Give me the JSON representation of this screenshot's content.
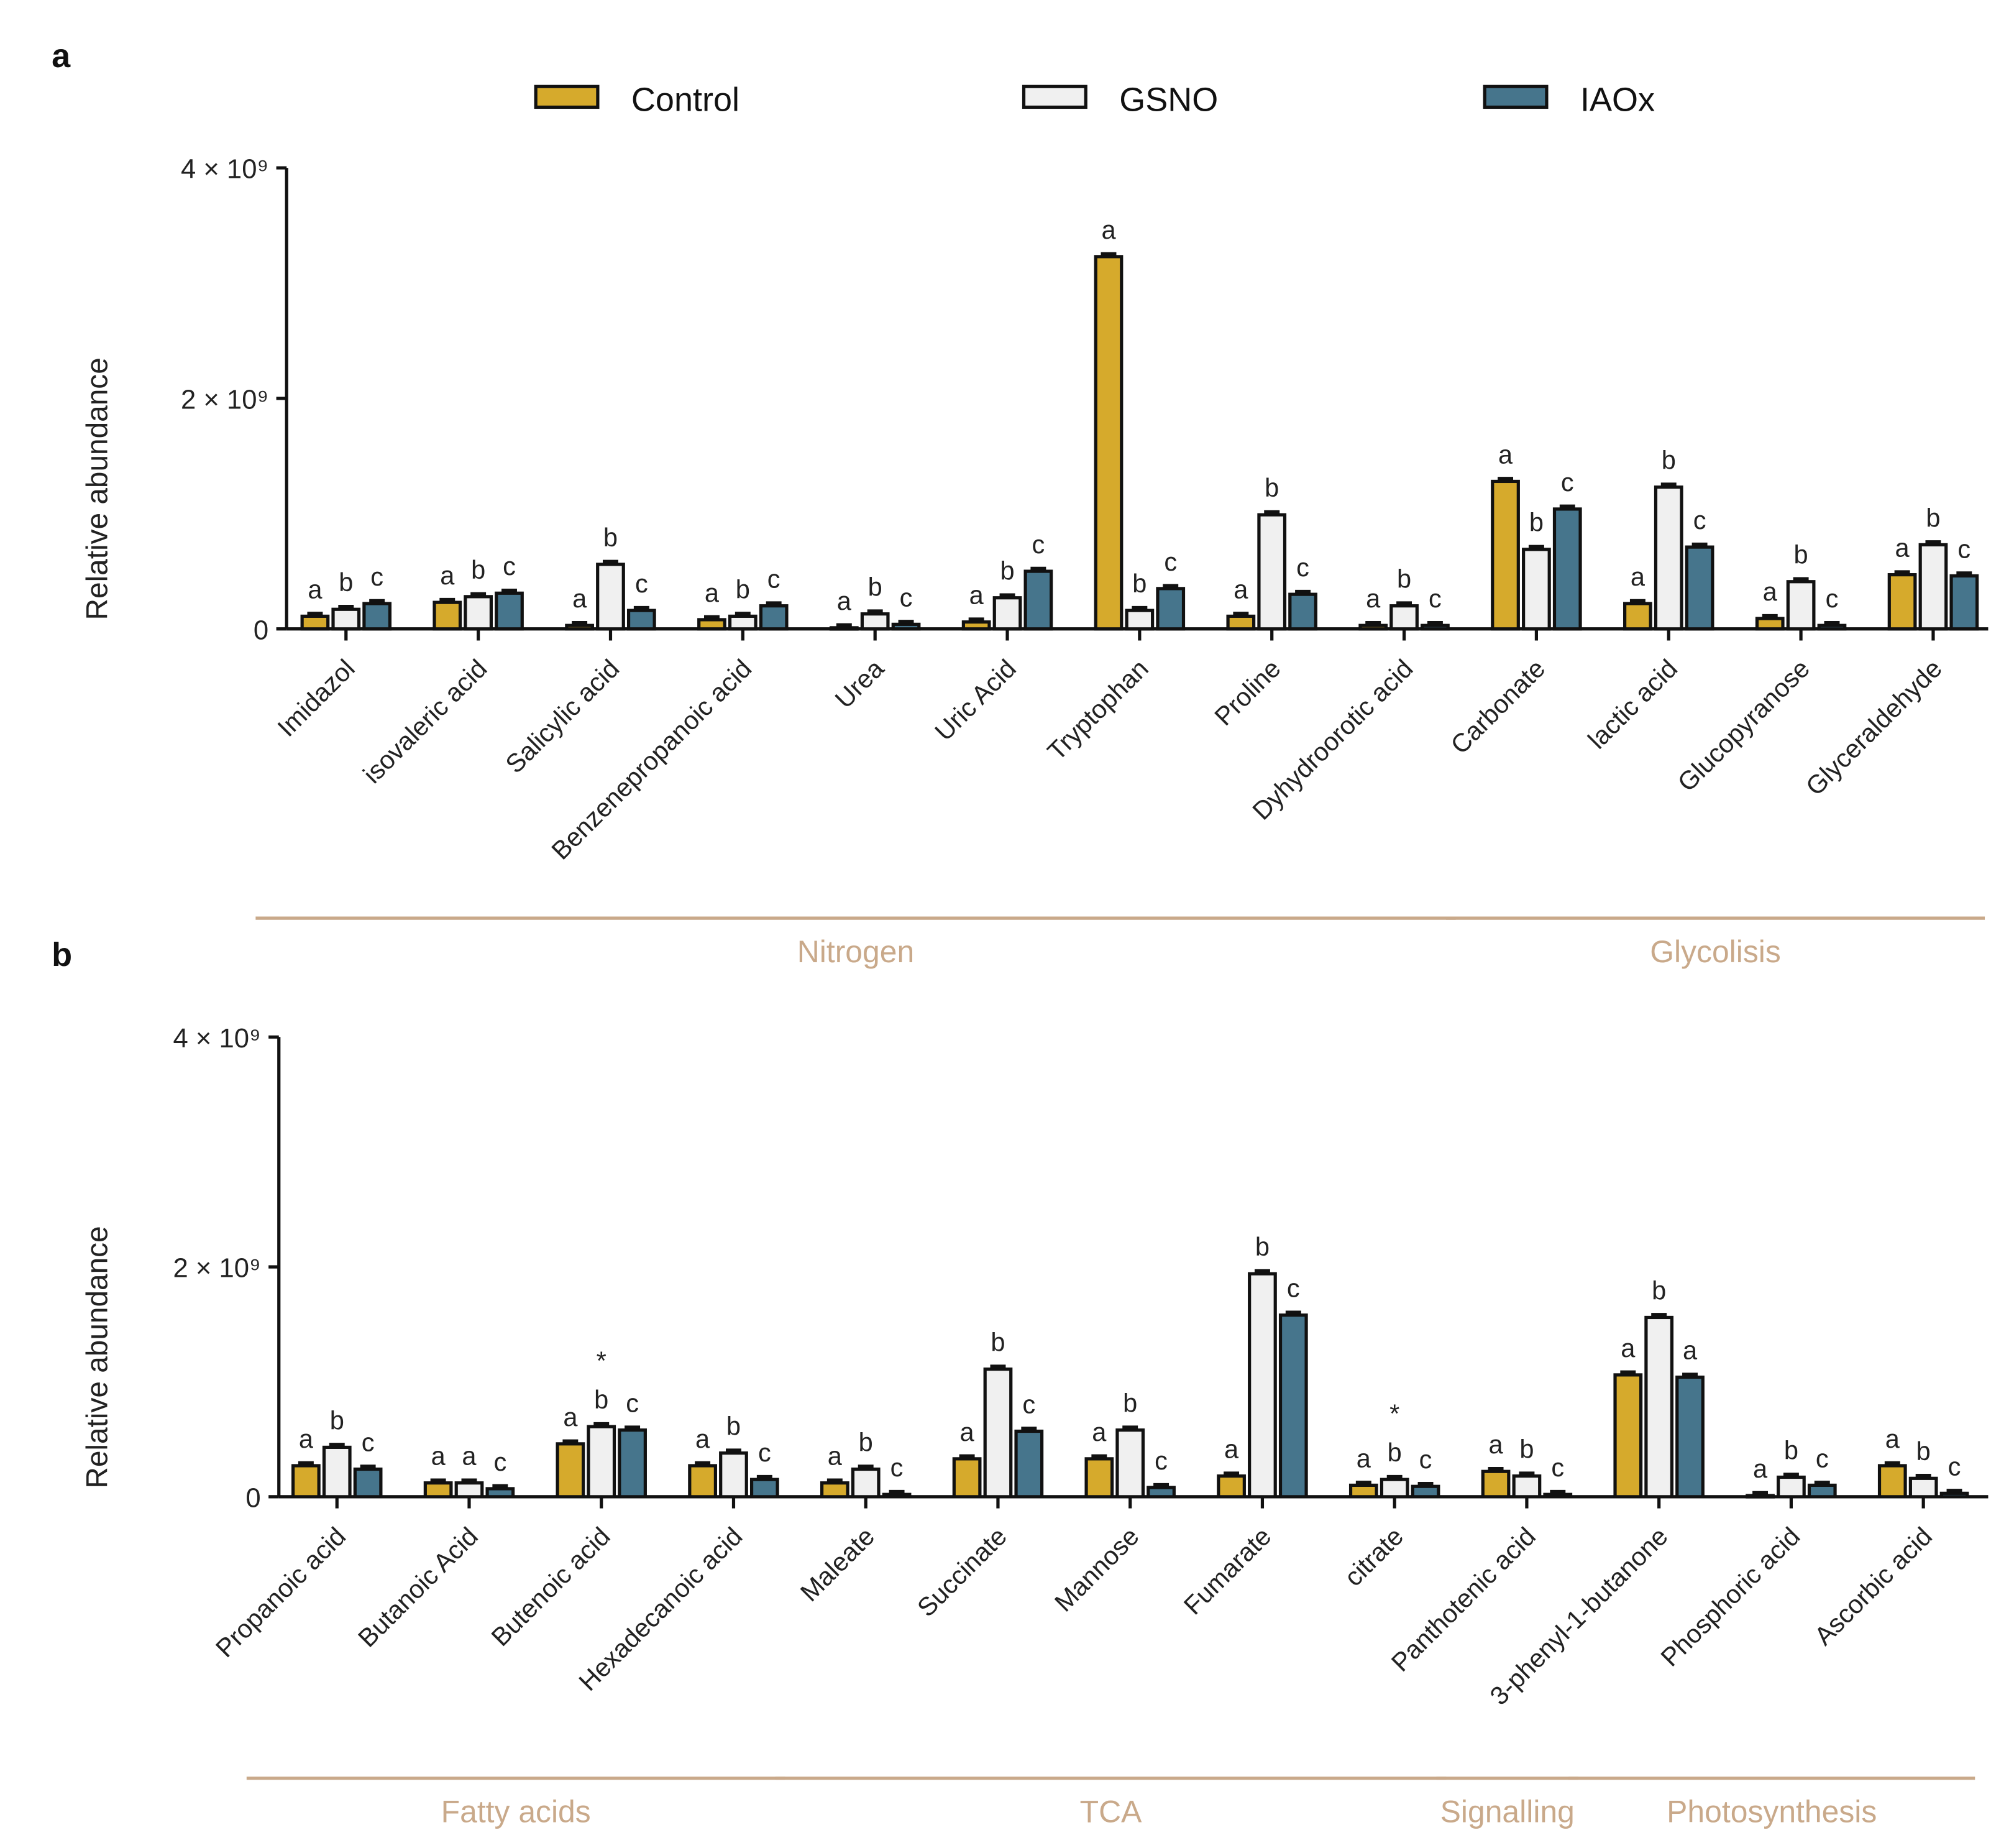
{
  "legend": [
    {
      "name": "Control",
      "color": "#D6AA2C"
    },
    {
      "name": "GSNO",
      "color": "#F0F0F0"
    },
    {
      "name": "IAOx",
      "color": "#46758C"
    }
  ],
  "chart_data": [
    {
      "type": "bar",
      "panel": "a",
      "ylabel": "Relative abundance",
      "ylim": [
        0,
        4000000000
      ],
      "yticks": [
        {
          "value": 0,
          "label": "0"
        },
        {
          "value": 2000000000,
          "label": "2 × 10⁹"
        },
        {
          "value": 4000000000,
          "label": "4 × 10⁹"
        }
      ],
      "categories": [
        "Imidazol",
        "isovaleric acid",
        "Salicylic acid",
        "Benzenepropanoic acid",
        "Urea",
        "Uric Acid",
        "Tryptophan",
        "Proline",
        "Dyhydroorotic acid",
        "Carbonate",
        "lactic acid",
        "Glucopyranose",
        "Glyceraldehyde"
      ],
      "unit_scale": 1000000000,
      "series": [
        {
          "name": "Control",
          "values": [
            0.11,
            0.23,
            0.03,
            0.08,
            0.01,
            0.06,
            3.23,
            0.11,
            0.03,
            1.28,
            0.22,
            0.09,
            0.47
          ]
        },
        {
          "name": "GSNO",
          "values": [
            0.17,
            0.28,
            0.56,
            0.11,
            0.13,
            0.27,
            0.16,
            0.99,
            0.2,
            0.69,
            1.23,
            0.41,
            0.73
          ]
        },
        {
          "name": "IAOx",
          "values": [
            0.22,
            0.31,
            0.16,
            0.2,
            0.04,
            0.5,
            0.35,
            0.3,
            0.03,
            1.04,
            0.71,
            0.03,
            0.46
          ]
        }
      ],
      "significance": [
        [
          "a",
          "b",
          "c"
        ],
        [
          "a",
          "b",
          "c"
        ],
        [
          "a",
          "b",
          "c"
        ],
        [
          "a",
          "b",
          "c"
        ],
        [
          "a",
          "b",
          "c"
        ],
        [
          "a",
          "b",
          "c"
        ],
        [
          "a",
          "b",
          "c"
        ],
        [
          "a",
          "b",
          "c"
        ],
        [
          "a",
          "b",
          "c"
        ],
        [
          "a",
          "b",
          "c"
        ],
        [
          "a",
          "b",
          "c"
        ],
        [
          "a",
          "b",
          "c"
        ],
        [
          "a",
          "b",
          "c"
        ]
      ],
      "groups": [
        {
          "label": "Nitrogen",
          "from": 0,
          "to": 8
        },
        {
          "label": "Glycolisis",
          "from": 9,
          "to": 12
        }
      ]
    },
    {
      "type": "bar",
      "panel": "b",
      "ylabel": "Relative abundance",
      "ylim": [
        0,
        4000000000
      ],
      "yticks": [
        {
          "value": 0,
          "label": "0"
        },
        {
          "value": 2000000000,
          "label": "2 × 10⁹"
        },
        {
          "value": 4000000000,
          "label": "4 × 10⁹"
        }
      ],
      "categories": [
        "Propanoic acid",
        "Butanoic Acid",
        "Butenoic acid",
        "Hexadecanoic acid",
        "Maleate",
        "Succinate",
        "Mannose",
        "Fumarate",
        "citrate",
        "Panthotenic acid",
        "3-phenyl-1-butanone",
        "Phosphoric acid",
        "Ascorbic acid"
      ],
      "unit_scale": 1000000000,
      "series": [
        {
          "name": "Control",
          "values": [
            0.27,
            0.12,
            0.46,
            0.27,
            0.12,
            0.33,
            0.33,
            0.18,
            0.1,
            0.22,
            1.06,
            0.01,
            0.27
          ]
        },
        {
          "name": "GSNO",
          "values": [
            0.43,
            0.12,
            0.61,
            0.38,
            0.24,
            1.11,
            0.58,
            1.94,
            0.15,
            0.18,
            1.56,
            0.17,
            0.16
          ]
        },
        {
          "name": "IAOx",
          "values": [
            0.24,
            0.07,
            0.58,
            0.15,
            0.02,
            0.57,
            0.08,
            1.58,
            0.09,
            0.02,
            1.04,
            0.1,
            0.03
          ]
        }
      ],
      "significance": [
        [
          "a",
          "b",
          "c"
        ],
        [
          "a",
          "a",
          "c"
        ],
        [
          "a",
          "*b",
          "c"
        ],
        [
          "a",
          "b",
          "c"
        ],
        [
          "a",
          "b",
          "c"
        ],
        [
          "a",
          "b",
          "c"
        ],
        [
          "a",
          "b",
          "c"
        ],
        [
          "a",
          "b",
          "c"
        ],
        [
          "a",
          "*b",
          "c"
        ],
        [
          "a",
          "b",
          "c"
        ],
        [
          "a",
          "b",
          "a"
        ],
        [
          "a",
          "b",
          "c"
        ],
        [
          "a",
          "b",
          "c"
        ]
      ],
      "groups": [
        {
          "label": "Fatty acids",
          "from": 0,
          "to": 3
        },
        {
          "label": "TCA",
          "from": 4,
          "to": 8
        },
        {
          "label": "Signalling",
          "from": 9,
          "to": 9
        },
        {
          "label": "Photosynthesis",
          "from": 10,
          "to": 12
        }
      ]
    }
  ]
}
